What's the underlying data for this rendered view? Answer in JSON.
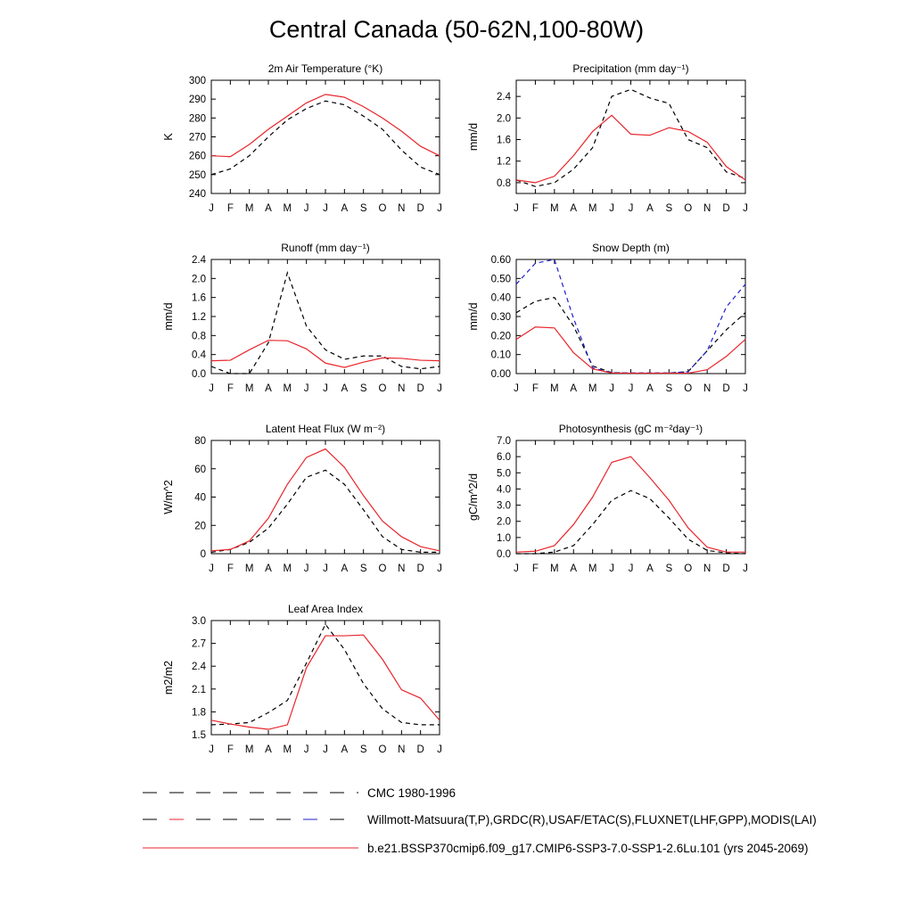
{
  "title": "Central Canada (50-62N,100-80W)",
  "legend": [
    {
      "label": "CMC 1980-1996",
      "style": "dash-black"
    },
    {
      "label": "Willmott-Matsuura(T,P),GRDC(R),USAF/ETAC(S),FLUXNET(LHF,GPP),MODIS(LAI)",
      "style": "dash-mixed"
    },
    {
      "label": "b.e21.BSSP370cmip6.f09_g17.CMIP6-SSP3-7.0-SSP1-2.6Lu.101 (yrs 2045-2069)",
      "style": "solid-red"
    }
  ],
  "colors": {
    "observed": "#000000",
    "observed_snow": "#1f1fcc",
    "model": "#e8252b"
  },
  "chart_data": [
    {
      "type": "line",
      "title": "2m Air Temperature (°K)",
      "ylabel": "K",
      "categories": [
        "J",
        "F",
        "M",
        "A",
        "M",
        "J",
        "J",
        "A",
        "S",
        "O",
        "N",
        "D",
        "J"
      ],
      "ylim": [
        240,
        300
      ],
      "yticks": [
        "240",
        "250",
        "260",
        "270",
        "280",
        "290",
        "300"
      ],
      "grid": false,
      "series": [
        {
          "name": "observed",
          "values": [
            250,
            253,
            260,
            270,
            279,
            285,
            289,
            287,
            281,
            274,
            263,
            254,
            250
          ],
          "color": "#000000",
          "dash": true
        },
        {
          "name": "model",
          "values": [
            260,
            259.5,
            266,
            274,
            281,
            288,
            292.5,
            291,
            286,
            280,
            273,
            265,
            260
          ],
          "color": "#e8252b",
          "dash": false
        }
      ]
    },
    {
      "type": "line",
      "title": "Precipitation (mm day⁻¹)",
      "ylabel": "mm/d",
      "categories": [
        "J",
        "F",
        "M",
        "A",
        "M",
        "J",
        "J",
        "A",
        "S",
        "O",
        "N",
        "D",
        "J"
      ],
      "ylim": [
        0.6,
        2.7
      ],
      "yticks": [
        "0.8",
        "1.2",
        "1.6",
        "2.0",
        "2.4"
      ],
      "grid": false,
      "series": [
        {
          "name": "observed",
          "values": [
            0.85,
            0.73,
            0.8,
            1.05,
            1.45,
            2.4,
            2.53,
            2.37,
            2.27,
            1.6,
            1.45,
            1.0,
            0.88
          ],
          "color": "#000000",
          "dash": true
        },
        {
          "name": "model",
          "values": [
            0.85,
            0.8,
            0.92,
            1.3,
            1.75,
            2.05,
            1.7,
            1.68,
            1.82,
            1.75,
            1.55,
            1.1,
            0.85
          ],
          "color": "#e8252b",
          "dash": false
        }
      ]
    },
    {
      "type": "line",
      "title": "Runoff (mm day⁻¹)",
      "ylabel": "mm/d",
      "categories": [
        "J",
        "F",
        "M",
        "A",
        "M",
        "J",
        "J",
        "A",
        "S",
        "O",
        "N",
        "D",
        "J"
      ],
      "ylim": [
        0,
        2.4
      ],
      "yticks": [
        "0.0",
        "0.4",
        "0.8",
        "1.2",
        "1.6",
        "2.0",
        "2.4"
      ],
      "grid": false,
      "series": [
        {
          "name": "observed",
          "values": [
            0.15,
            0.0,
            0.0,
            0.65,
            2.12,
            1.0,
            0.5,
            0.3,
            0.37,
            0.37,
            0.15,
            0.1,
            0.15
          ],
          "color": "#000000",
          "dash": true
        },
        {
          "name": "model",
          "values": [
            0.27,
            0.28,
            0.5,
            0.7,
            0.69,
            0.52,
            0.22,
            0.13,
            0.24,
            0.33,
            0.32,
            0.28,
            0.27
          ],
          "color": "#e8252b",
          "dash": false
        }
      ]
    },
    {
      "type": "line",
      "title": "Snow Depth (m)",
      "ylabel": "mm/d",
      "categories": [
        "J",
        "F",
        "M",
        "A",
        "M",
        "J",
        "J",
        "A",
        "S",
        "O",
        "N",
        "D",
        "J"
      ],
      "ylim": [
        0,
        0.6
      ],
      "yticks": [
        "0.00",
        "0.10",
        "0.20",
        "0.30",
        "0.40",
        "0.50",
        "0.60"
      ],
      "grid": false,
      "series": [
        {
          "name": "observed",
          "values": [
            0.32,
            0.38,
            0.4,
            0.25,
            0.04,
            0.005,
            0.003,
            0.003,
            0.003,
            0.01,
            0.12,
            0.23,
            0.32
          ],
          "color": "#000000",
          "dash": true
        },
        {
          "name": "observed snow",
          "values": [
            0.47,
            0.58,
            0.6,
            0.29,
            0.03,
            0.005,
            0.003,
            0.003,
            0.003,
            0.01,
            0.12,
            0.35,
            0.47
          ],
          "color": "#1f1fcc",
          "dash": true
        },
        {
          "name": "model",
          "values": [
            0.18,
            0.245,
            0.24,
            0.11,
            0.025,
            0.003,
            0.002,
            0.002,
            0.002,
            0.002,
            0.02,
            0.09,
            0.18
          ],
          "color": "#e8252b",
          "dash": false
        }
      ]
    },
    {
      "type": "line",
      "title": "Latent Heat Flux (W m⁻²)",
      "ylabel": "W/m^2",
      "categories": [
        "J",
        "F",
        "M",
        "A",
        "M",
        "J",
        "J",
        "A",
        "S",
        "O",
        "N",
        "D",
        "J"
      ],
      "ylim": [
        0,
        80
      ],
      "yticks": [
        "0",
        "20",
        "40",
        "60",
        "80"
      ],
      "grid": false,
      "series": [
        {
          "name": "observed",
          "values": [
            1,
            3,
            8,
            18,
            35,
            54,
            59,
            49,
            31,
            12,
            3,
            1,
            1
          ],
          "color": "#000000",
          "dash": true
        },
        {
          "name": "model",
          "values": [
            2,
            3,
            9,
            25,
            49,
            68,
            74,
            61,
            41,
            23,
            12,
            5,
            2
          ],
          "color": "#e8252b",
          "dash": false
        }
      ]
    },
    {
      "type": "line",
      "title": "Photosynthesis (gC m⁻²day⁻¹)",
      "ylabel": "gC/m^2/d",
      "categories": [
        "J",
        "F",
        "M",
        "A",
        "M",
        "J",
        "J",
        "A",
        "S",
        "O",
        "N",
        "D",
        "J"
      ],
      "ylim": [
        0,
        7
      ],
      "yticks": [
        "0.0",
        "1.0",
        "2.0",
        "3.0",
        "4.0",
        "5.0",
        "6.0",
        "7.0"
      ],
      "grid": false,
      "series": [
        {
          "name": "observed",
          "values": [
            0,
            0,
            0.1,
            0.5,
            1.8,
            3.3,
            3.9,
            3.4,
            2.2,
            0.9,
            0.2,
            0.05,
            0
          ],
          "color": "#000000",
          "dash": true
        },
        {
          "name": "model",
          "values": [
            0.1,
            0.15,
            0.5,
            1.8,
            3.5,
            5.65,
            6.0,
            4.7,
            3.3,
            1.6,
            0.4,
            0.1,
            0.1
          ],
          "color": "#e8252b",
          "dash": false
        }
      ]
    },
    {
      "type": "line",
      "title": "Leaf Area Index",
      "ylabel": "m2/m2",
      "categories": [
        "J",
        "F",
        "M",
        "A",
        "M",
        "J",
        "J",
        "A",
        "S",
        "O",
        "N",
        "D",
        "J"
      ],
      "ylim": [
        1.5,
        3.0
      ],
      "yticks": [
        "1.5",
        "1.8",
        "2.1",
        "2.4",
        "2.7",
        "3.0"
      ],
      "grid": false,
      "series": [
        {
          "name": "observed",
          "values": [
            1.63,
            1.64,
            1.66,
            1.79,
            1.95,
            2.44,
            2.95,
            2.62,
            2.17,
            1.84,
            1.66,
            1.63,
            1.63
          ],
          "color": "#000000",
          "dash": true
        },
        {
          "name": "model",
          "values": [
            1.69,
            1.64,
            1.6,
            1.57,
            1.63,
            2.38,
            2.8,
            2.8,
            2.81,
            2.49,
            2.09,
            1.98,
            1.69
          ],
          "color": "#e8252b",
          "dash": false
        }
      ]
    }
  ]
}
